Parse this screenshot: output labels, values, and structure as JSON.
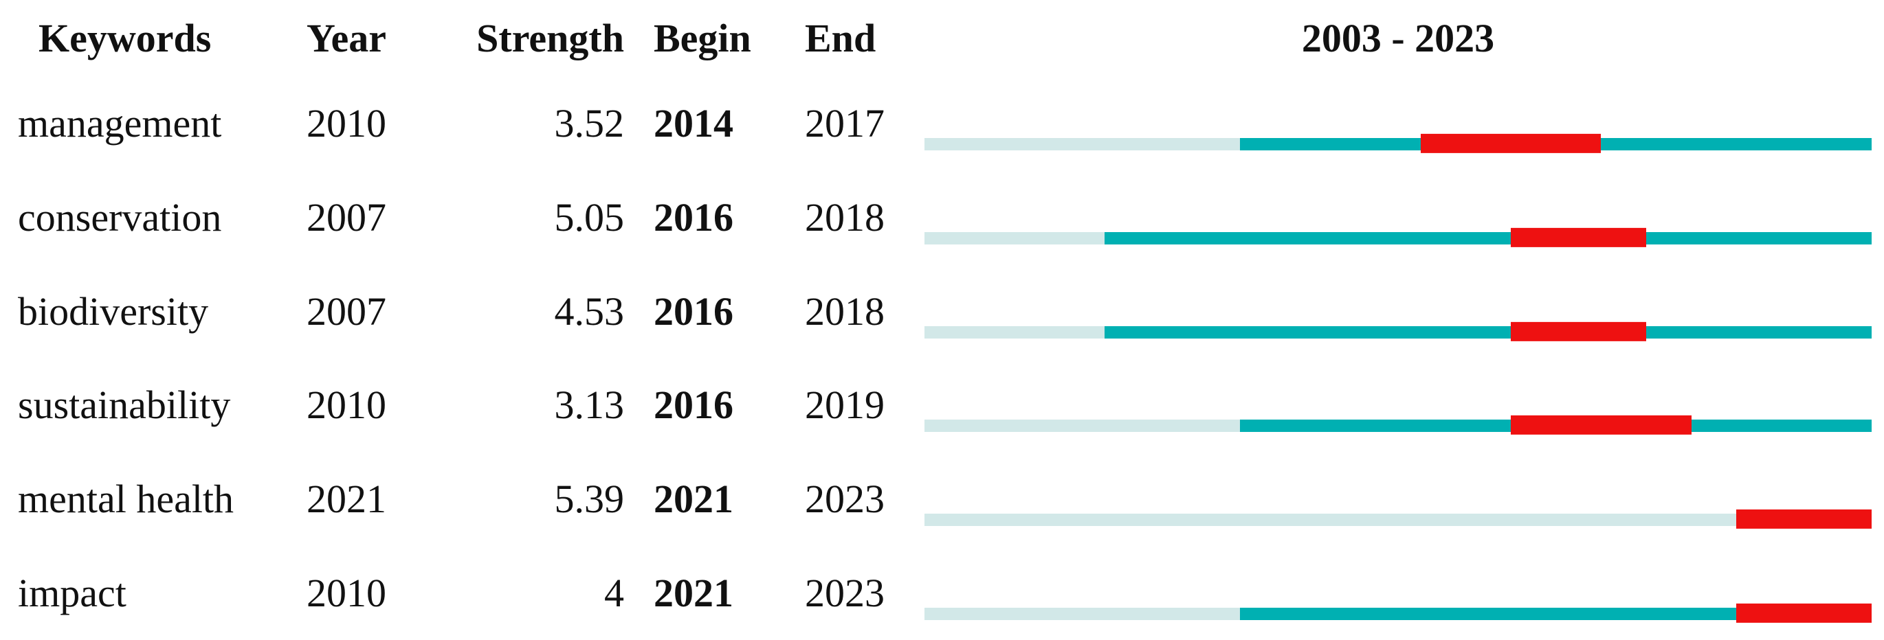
{
  "figure_title": "keyword-citation-burst-table",
  "header": {
    "keywords": "Keywords",
    "year": "Year",
    "strength": "Strength",
    "begin": "Begin",
    "end": "End",
    "timeline_range": "2003 - 2023"
  },
  "chart_data": {
    "type": "bar",
    "subtype": "citation-burst-timeline",
    "columns": [
      "Keywords",
      "Year",
      "Strength",
      "Begin",
      "End"
    ],
    "timeline": {
      "label": "2003 - 2023",
      "start": 2003,
      "end": 2023
    },
    "rows": [
      {
        "keyword": "management",
        "year": 2010,
        "strength": "3.52",
        "begin": 2014,
        "end": 2017
      },
      {
        "keyword": "conservation",
        "year": 2007,
        "strength": "5.05",
        "begin": 2016,
        "end": 2018
      },
      {
        "keyword": "biodiversity",
        "year": 2007,
        "strength": "4.53",
        "begin": 2016,
        "end": 2018
      },
      {
        "keyword": "sustainability",
        "year": 2010,
        "strength": "3.13",
        "begin": 2016,
        "end": 2019
      },
      {
        "keyword": "mental health",
        "year": 2021,
        "strength": "5.39",
        "begin": 2021,
        "end": 2023
      },
      {
        "keyword": "impact",
        "year": 2010,
        "strength": "4",
        "begin": 2021,
        "end": 2023
      }
    ],
    "legend": {
      "pre_period_meaning": "before keyword first appearance",
      "active_period_meaning": "keyword active period",
      "burst_period_meaning": "citation burst period"
    },
    "colors": {
      "pre_period": "#d2e8e8",
      "active_period": "#00b0b2",
      "burst_period": "#ee1111",
      "text": "#111111",
      "background": "#ffffff"
    }
  }
}
